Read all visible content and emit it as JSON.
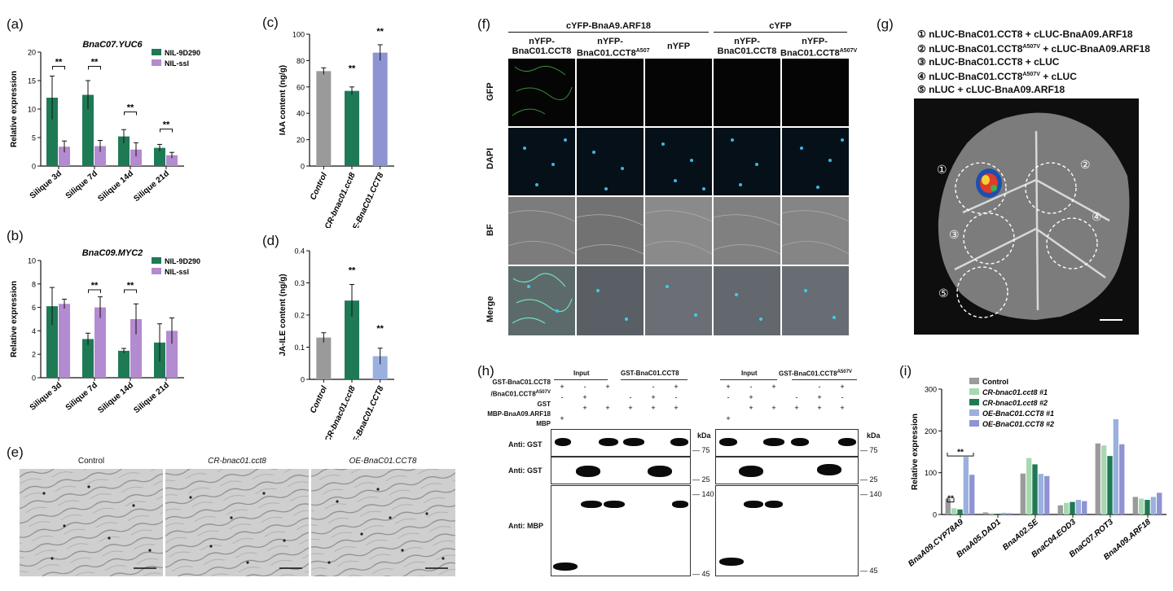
{
  "panels": {
    "a": {
      "letter": "(a)",
      "title": "BnaC07.YUC6",
      "ylabel": "Relative expression",
      "legend": [
        "NIL-9D290",
        "NIL-ssl"
      ],
      "sig": "**"
    },
    "b": {
      "letter": "(b)",
      "title": "BnaC09.MYC2",
      "ylabel": "Relative expression",
      "legend": [
        "NIL-9D290",
        "NIL-ssl"
      ],
      "sig": "**"
    },
    "c": {
      "letter": "(c)",
      "ylabel": "IAA content (ng/g)",
      "sig": "**"
    },
    "d": {
      "letter": "(d)",
      "ylabel": "JA-ILE content (ng/g)",
      "sig": "**"
    },
    "e": {
      "letter": "(e)",
      "labels": [
        "Control",
        "CR-bnac01.cct8",
        "OE-BnaC01.CCT8"
      ]
    },
    "f": {
      "letter": "(f)",
      "group1": "cYFP-BnaA9.ARF18",
      "group2": "cYFP",
      "columns": [
        "nYFP-\nBnaC01.CCT8",
        "nYFP-\nBnaC01.CCT8",
        "nYFP",
        "nYFP-\nBnaC01.CCT8",
        "nYFP-\nBnaC01.CCT8"
      ],
      "col_sup": [
        "",
        "A507",
        "",
        "",
        "A507V"
      ],
      "rows": [
        "GFP",
        "DAPI",
        "BF",
        "Merge"
      ]
    },
    "g": {
      "letter": "(g)",
      "legend": [
        {
          "num": "①",
          "text": "nLUC-BnaC01.CCT8 +  cLUC-BnaA09.ARF18"
        },
        {
          "num": "②",
          "text": "nLUC-BnaC01.CCT8",
          "sup": "A507V",
          "rest": " + cLUC-BnaA09.ARF18"
        },
        {
          "num": "③",
          "text": "nLUC-BnaC01.CCT8 + cLUC"
        },
        {
          "num": "④",
          "text": "nLUC-BnaC01.CCT8",
          "sup": "A507V",
          "rest": " + cLUC"
        },
        {
          "num": "⑤",
          "text": "nLUC + cLUC-BnaA09.ARF18"
        }
      ],
      "circle_labels": [
        "①",
        "②",
        "③",
        "④",
        "⑤"
      ]
    },
    "h": {
      "letter": "(h)",
      "row_labels": [
        "GST-BnaC01.CCT8",
        "/BnaC01.CCT8",
        "GST",
        "MBP-BnaA09.ARF18",
        "MBP"
      ],
      "row_label_sup": "A507V",
      "left_group": [
        "Input",
        "GST-BnaC01.CCT8"
      ],
      "right_group": [
        "Input",
        "GST-BnaC01.CCT8"
      ],
      "right_group_sup": "A507V",
      "blot_labels": [
        "Anti: GST",
        "Anti: GST",
        "Anti: MBP"
      ],
      "kda": "kDa",
      "markers_top": "75",
      "markers_mid": "25",
      "markers_bot_hi": "140",
      "markers_bot_lo": "45",
      "plus": "+",
      "minus": "-"
    },
    "i": {
      "letter": "(i)",
      "ylabel": "Relative expression",
      "sig": "**",
      "legend": [
        "Control",
        "CR-bnac01.cct8 #1",
        "CR-bnac01.cct8 #2",
        "OE-BnaC01.CCT8 #1",
        "OE-BnaC01.CCT8 #2"
      ]
    }
  },
  "colors": {
    "green": "#1e7a55",
    "purple": "#b38bd0",
    "grey": "#9a9a9a",
    "periwinkle": "#8f93d2",
    "lightgreen": "#a6d9b0",
    "lightblue": "#9ab0de"
  },
  "chart_data": [
    {
      "id": "a",
      "type": "bar",
      "title": "BnaC07.YUC6",
      "categories": [
        "Silique 3d",
        "Silique 7d",
        "Silique 14d",
        "Silique 21d"
      ],
      "series": [
        {
          "name": "NIL-9D290",
          "values": [
            12,
            12.5,
            5.2,
            3.2
          ],
          "err": [
            3.8,
            2.5,
            1.2,
            0.6
          ]
        },
        {
          "name": "NIL-ssl",
          "values": [
            3.4,
            3.5,
            2.9,
            1.9
          ],
          "err": [
            1.0,
            1.0,
            1.2,
            0.5
          ]
        }
      ],
      "ylim": [
        0,
        20
      ],
      "yticks": [
        0,
        5,
        10,
        15,
        20
      ],
      "ylabel": "Relative expression"
    },
    {
      "id": "b",
      "type": "bar",
      "title": "BnaC09.MYC2",
      "categories": [
        "Silique 3d",
        "Silique 7d",
        "Silique 14d",
        "Silique 21d"
      ],
      "series": [
        {
          "name": "NIL-9D290",
          "values": [
            6.1,
            3.3,
            2.3,
            3.0
          ],
          "err": [
            1.6,
            0.5,
            0.2,
            1.6
          ]
        },
        {
          "name": "NIL-ssl",
          "values": [
            6.3,
            6.0,
            5.0,
            4.0
          ],
          "err": [
            0.4,
            0.9,
            1.3,
            1.1
          ]
        }
      ],
      "ylim": [
        0,
        10
      ],
      "yticks": [
        0,
        2,
        4,
        6,
        8,
        10
      ],
      "ylabel": "Relative expression"
    },
    {
      "id": "c",
      "type": "bar",
      "categories": [
        "Control",
        "CR-bnac01.cct8",
        "OE-BnaC01.CCT8"
      ],
      "values": [
        72,
        57,
        86
      ],
      "err": [
        2.5,
        3,
        6
      ],
      "ylim": [
        0,
        100
      ],
      "yticks": [
        0,
        20,
        40,
        60,
        80,
        100
      ],
      "ylabel": "IAA content (ng/g)"
    },
    {
      "id": "d",
      "type": "bar",
      "categories": [
        "Control",
        "CR-bnac01.cct8",
        "OE-BnaC01.CCT8"
      ],
      "values": [
        0.13,
        0.245,
        0.072
      ],
      "err": [
        0.015,
        0.05,
        0.025
      ],
      "ylim": [
        0,
        0.4
      ],
      "yticks": [
        0.0,
        0.1,
        0.2,
        0.3,
        0.4
      ],
      "ylabel": "JA-ILE content (ng/g)"
    },
    {
      "id": "i",
      "type": "bar",
      "categories": [
        "BnaA09.CYP78A9",
        "BnaA05.DAD1",
        "BnaA02.SE",
        "BnaC04.EOD3",
        "BnaC07.ROT3",
        "BnaA09.ARF18"
      ],
      "series": [
        {
          "name": "Control",
          "values": [
            38,
            5,
            98,
            22,
            170,
            42
          ]
        },
        {
          "name": "CR-bnac01.cct8 #1",
          "values": [
            15,
            3,
            135,
            28,
            165,
            38
          ]
        },
        {
          "name": "CR-bnac01.cct8 #2",
          "values": [
            12,
            2,
            120,
            30,
            140,
            35
          ]
        },
        {
          "name": "OE-BnaC01.CCT8 #1",
          "values": [
            138,
            4,
            97,
            35,
            228,
            42
          ]
        },
        {
          "name": "OE-BnaC01.CCT8 #2",
          "values": [
            95,
            3,
            92,
            32,
            168,
            52
          ]
        }
      ],
      "ylim": [
        0,
        300
      ],
      "yticks": [
        0,
        100,
        200,
        300
      ],
      "ylabel": "Relative expression"
    }
  ]
}
